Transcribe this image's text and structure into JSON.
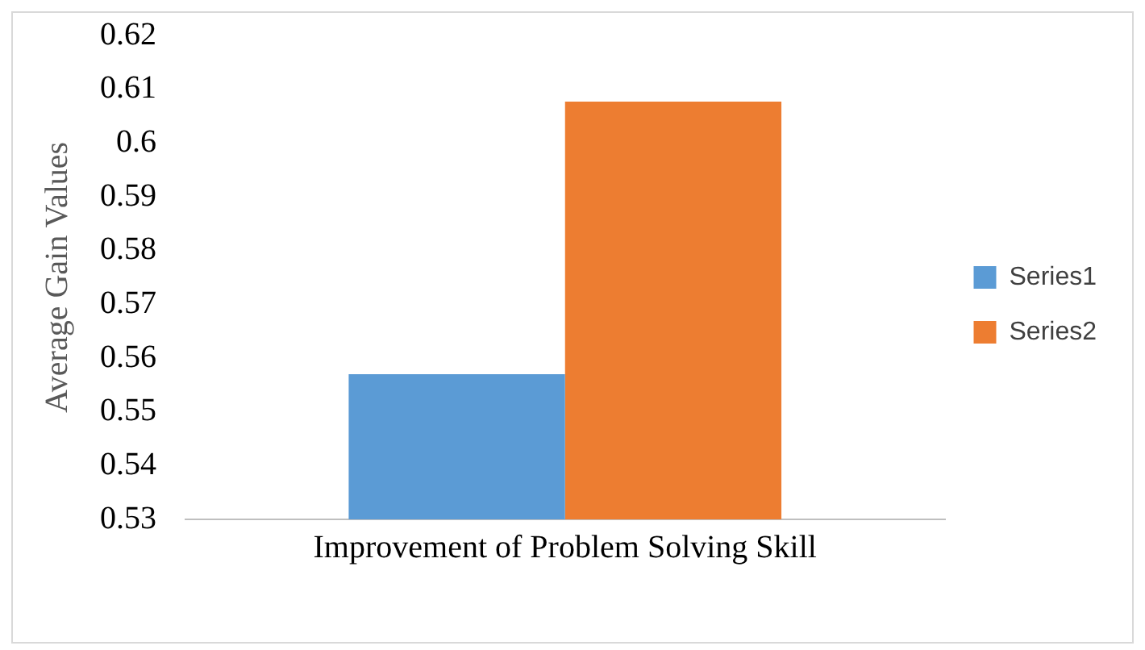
{
  "chart_data": {
    "type": "bar",
    "ylabel": "Average Gain Values",
    "categories": [
      "Improvement of Problem Solving Skill"
    ],
    "series": [
      {
        "name": "Series1",
        "color": "#5b9bd5",
        "values": [
          0.557
        ]
      },
      {
        "name": "Series2",
        "color": "#ed7d31",
        "values": [
          0.6077
        ]
      }
    ],
    "ylim": [
      0.53,
      0.62
    ],
    "yticks": [
      0.53,
      0.54,
      0.55,
      0.56,
      0.57,
      0.58,
      0.59,
      0.6,
      0.61,
      0.62
    ],
    "grid": false,
    "legend": "right"
  }
}
